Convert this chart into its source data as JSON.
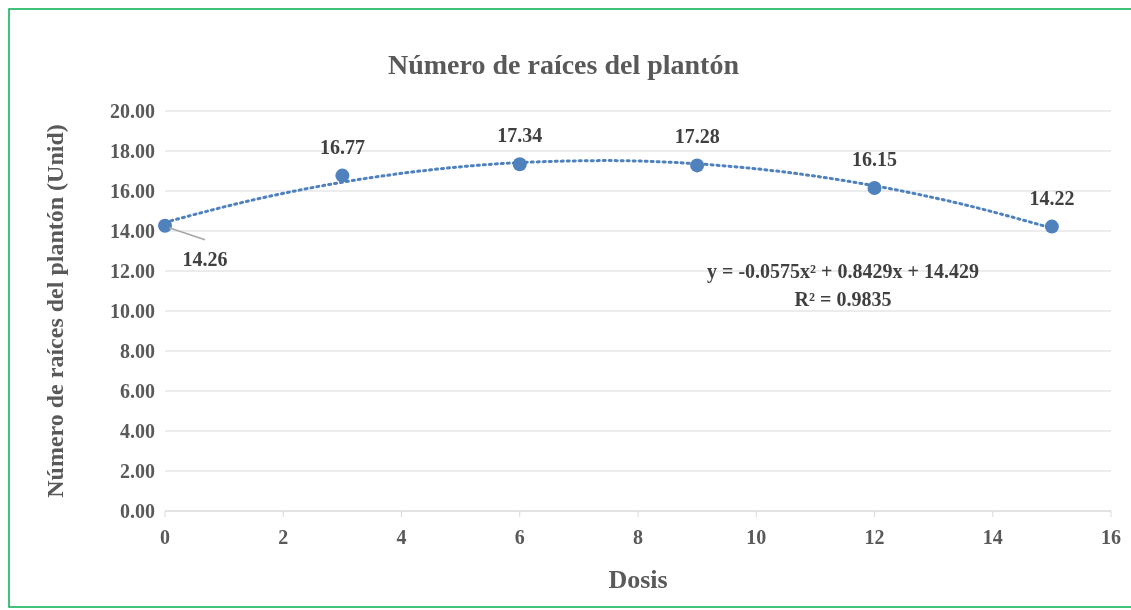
{
  "chart_data": {
    "type": "scatter",
    "title": "Número de raíces del plantón",
    "xlabel": "Dosis",
    "ylabel": "Número de raíces del plantón (Unid)",
    "series": [
      {
        "color": "#4f81bd",
        "marker": "circle",
        "x": [
          0,
          3,
          6,
          9,
          12,
          15
        ],
        "values": [
          14.26,
          16.77,
          17.34,
          17.28,
          16.15,
          14.22
        ],
        "value_labels": [
          "14.26",
          "16.77",
          "17.34",
          "17.28",
          "16.15",
          "14.22"
        ]
      },
      {
        "type": "line",
        "color": "#4f81bd",
        "line_style": "dotted",
        "marker": "none",
        "x": [
          0,
          1.5,
          3,
          4.5,
          6,
          7.5,
          9,
          10.5,
          12,
          13.5,
          15
        ],
        "values": [
          14.43,
          15.56,
          16.44,
          17.06,
          17.42,
          17.52,
          17.36,
          16.94,
          16.26,
          15.33,
          14.14
        ]
      }
    ],
    "xlim": [
      0,
      16
    ],
    "xticks": [
      0,
      2,
      4,
      6,
      8,
      10,
      12,
      14,
      16
    ],
    "ylim": [
      0,
      20
    ],
    "yticks": [
      {
        "value": 0,
        "label": "0.00"
      },
      {
        "value": 2,
        "label": "2.00"
      },
      {
        "value": 4,
        "label": "4.00"
      },
      {
        "value": 6,
        "label": "6.00"
      },
      {
        "value": 8,
        "label": "8.00"
      },
      {
        "value": 10,
        "label": "10.00"
      },
      {
        "value": 12,
        "label": "12.00"
      },
      {
        "value": 14,
        "label": "14.00"
      },
      {
        "value": 16,
        "label": "16.00"
      },
      {
        "value": 18,
        "label": "18.00"
      },
      {
        "value": 20,
        "label": "20.00"
      }
    ],
    "grid": "y",
    "annotations": [
      "y = -0.0575x² + 0.8429x + 14.429",
      "R² = 0.9835"
    ]
  }
}
